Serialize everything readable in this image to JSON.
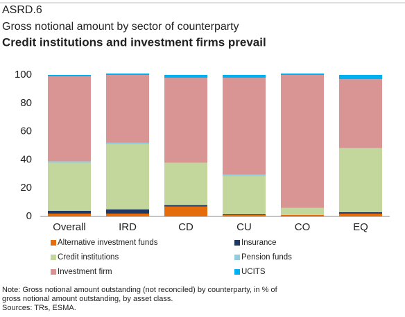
{
  "chart_data": {
    "type": "stacked_bar",
    "figure_label": "ASRD.6",
    "subtitle": "Gross notional amount by sector of counterparty",
    "title": "Credit institutions and investment firms prevail",
    "categories": [
      "Overall",
      "IRD",
      "CD",
      "CU",
      "CO",
      "EQ"
    ],
    "series": [
      {
        "name": "Alternative investment funds",
        "color": "#e46c0a",
        "values": [
          2,
          2,
          7,
          1,
          1,
          2
        ]
      },
      {
        "name": "Insurance",
        "color": "#1f3864",
        "values": [
          2,
          3,
          1,
          0.5,
          0,
          1
        ]
      },
      {
        "name": "Credit institutions",
        "color": "#c3d69b",
        "values": [
          34,
          46,
          30,
          27,
          5,
          45
        ]
      },
      {
        "name": "Pension funds",
        "color": "#93cddd",
        "values": [
          1,
          1,
          0,
          1,
          0,
          0.5
        ]
      },
      {
        "name": "Investment firm",
        "color": "#d99594",
        "values": [
          60,
          48,
          60,
          68.5,
          94,
          48.5
        ]
      },
      {
        "name": "UCITS",
        "color": "#00b0f0",
        "values": [
          1,
          1,
          2,
          2,
          1,
          3
        ]
      }
    ],
    "ylim": [
      0,
      100
    ],
    "yticks": [
      0,
      20,
      40,
      60,
      80,
      100
    ],
    "grid": false,
    "notes": [
      "Note: Gross notional amount outstanding (not reconciled) by counterparty, in % of",
      "gross notional amount outstanding,  by asset class.",
      "Sources: TRs, ESMA."
    ]
  }
}
